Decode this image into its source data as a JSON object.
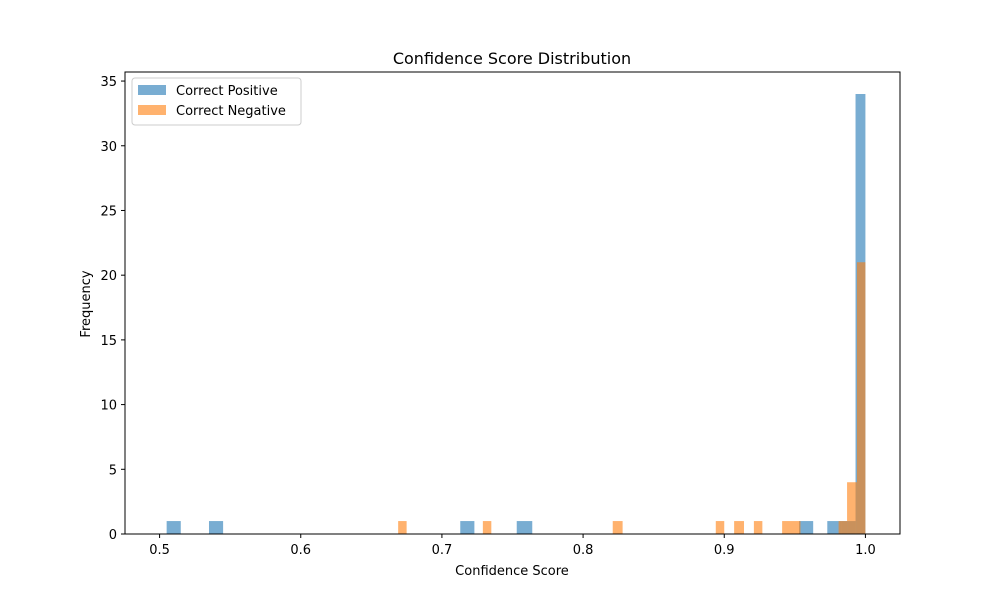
{
  "chart_data": {
    "type": "bar",
    "title": "Confidence Score Distribution",
    "xlabel": "Confidence Score",
    "ylabel": "Frequency",
    "xlim": [
      0.4755,
      1.0245
    ],
    "ylim": [
      0,
      35.7
    ],
    "xticks": [
      0.5,
      0.6,
      0.7,
      0.8,
      0.9,
      1.0
    ],
    "xtick_labels": [
      "0.5",
      "0.6",
      "0.7",
      "0.8",
      "0.9",
      "1.0"
    ],
    "yticks": [
      0,
      5,
      10,
      15,
      20,
      25,
      30,
      35
    ],
    "ytick_labels": [
      "0",
      "5",
      "10",
      "15",
      "20",
      "25",
      "30",
      "35"
    ],
    "grid": false,
    "legend_position": "top-left",
    "series": [
      {
        "name": "Correct Positive",
        "color": "#1f77b4",
        "opacity": 0.6,
        "bins": [
          {
            "x0": 0.505,
            "x1": 0.515,
            "count": 1
          },
          {
            "x0": 0.535,
            "x1": 0.545,
            "count": 1
          },
          {
            "x0": 0.713,
            "x1": 0.723,
            "count": 1
          },
          {
            "x0": 0.753,
            "x1": 0.764,
            "count": 1
          },
          {
            "x0": 0.953,
            "x1": 0.963,
            "count": 1
          },
          {
            "x0": 0.973,
            "x1": 0.983,
            "count": 1
          },
          {
            "x0": 0.983,
            "x1": 0.993,
            "count": 1
          },
          {
            "x0": 0.993,
            "x1": 1.0,
            "count": 34
          }
        ]
      },
      {
        "name": "Correct Negative",
        "color": "#ff7f0e",
        "opacity": 0.6,
        "bins": [
          {
            "x0": 0.669,
            "x1": 0.675,
            "count": 1
          },
          {
            "x0": 0.729,
            "x1": 0.735,
            "count": 1
          },
          {
            "x0": 0.821,
            "x1": 0.828,
            "count": 1
          },
          {
            "x0": 0.894,
            "x1": 0.9,
            "count": 1
          },
          {
            "x0": 0.907,
            "x1": 0.914,
            "count": 1
          },
          {
            "x0": 0.921,
            "x1": 0.927,
            "count": 1
          },
          {
            "x0": 0.941,
            "x1": 0.954,
            "count": 1
          },
          {
            "x0": 0.981,
            "x1": 0.987,
            "count": 1
          },
          {
            "x0": 0.987,
            "x1": 0.994,
            "count": 4
          },
          {
            "x0": 0.994,
            "x1": 1.0,
            "count": 21
          }
        ]
      }
    ]
  }
}
